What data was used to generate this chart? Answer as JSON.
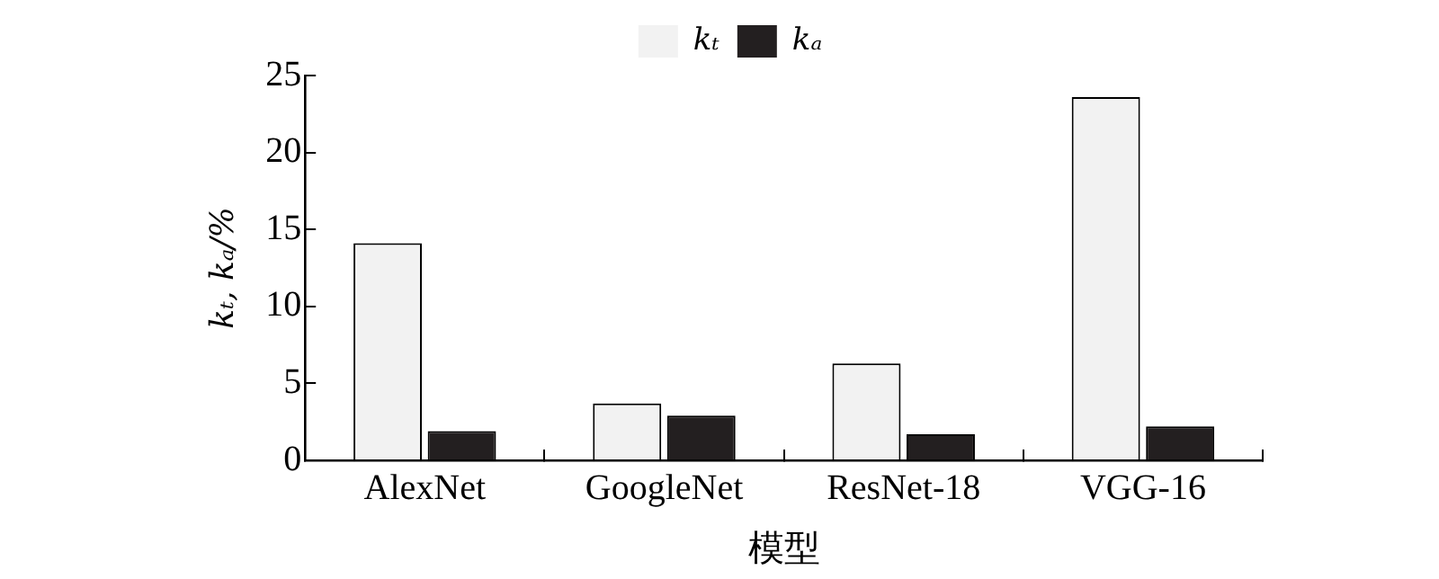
{
  "chart_data": {
    "type": "bar",
    "xlabel": "模型",
    "ylabel": "kₜ, kₐ/%",
    "categories": [
      "AlexNet",
      "GoogleNet",
      "ResNet-18",
      "VGG-16"
    ],
    "series": [
      {
        "name": "kₜ",
        "color": "#f2f2f2",
        "values": [
          14.1,
          3.7,
          6.3,
          23.6
        ]
      },
      {
        "name": "kₐ",
        "color": "#231f20",
        "values": [
          1.9,
          2.9,
          1.7,
          2.2
        ]
      }
    ],
    "ylim": [
      0,
      25
    ],
    "yticks": [
      0,
      5,
      10,
      15,
      20,
      25
    ],
    "grid": false,
    "legend": "top"
  }
}
